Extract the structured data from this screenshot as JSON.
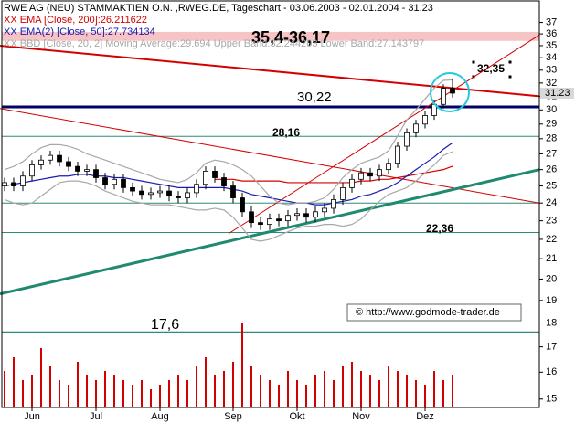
{
  "chart_data": {
    "type": "candlestick",
    "title": "RWE AG (NEU) STAMMAKTIEN O.N. ,RWEG.DE, Tageschart - 03.06.2003 - 02.01.2004 - 31.23",
    "log_scale": true,
    "ylim": [
      14.7,
      38.2
    ],
    "yticks": [
      15,
      16,
      17,
      18,
      19,
      20,
      21,
      22,
      23,
      24,
      25,
      26,
      27,
      28,
      29,
      30,
      31,
      32,
      33,
      34,
      35,
      36,
      37
    ],
    "categories": [
      null,
      null,
      null,
      "Jun",
      null,
      null,
      null,
      null,
      null,
      null,
      "Jul",
      null,
      null,
      null,
      null,
      null,
      null,
      "Aug",
      null,
      null,
      null,
      null,
      null,
      null,
      null,
      "Sep",
      null,
      null,
      null,
      null,
      null,
      null,
      "Okt",
      null,
      null,
      null,
      null,
      null,
      null,
      "Nov",
      null,
      null,
      null,
      null,
      null,
      null,
      "Dez",
      null,
      null,
      null
    ],
    "open": [
      25.0,
      25.2,
      25.0,
      25.6,
      26.3,
      26.6,
      26.9,
      26.5,
      26.2,
      25.9,
      26.0,
      25.5,
      25.1,
      25.4,
      24.9,
      24.7,
      24.5,
      24.6,
      24.7,
      24.4,
      24.3,
      24.6,
      25.1,
      25.9,
      25.5,
      25.0,
      24.3,
      23.5,
      22.9,
      22.8,
      23.1,
      23.0,
      23.3,
      23.4,
      23.2,
      23.5,
      23.7,
      24.2,
      24.9,
      25.4,
      25.8,
      25.6,
      26.0,
      26.4,
      27.5,
      28.4,
      29.0,
      29.6,
      30.4,
      31.6
    ],
    "high": [
      25.5,
      25.5,
      25.9,
      26.6,
      26.9,
      27.2,
      27.2,
      26.8,
      26.5,
      26.3,
      26.3,
      25.8,
      25.7,
      25.7,
      25.2,
      25.0,
      24.9,
      25.0,
      25.0,
      24.7,
      24.9,
      25.4,
      26.2,
      26.2,
      25.8,
      25.3,
      24.6,
      23.8,
      23.2,
      23.4,
      23.4,
      23.6,
      23.7,
      23.7,
      23.8,
      24.0,
      24.5,
      25.2,
      25.7,
      26.1,
      26.1,
      26.3,
      26.7,
      27.8,
      28.7,
      29.3,
      29.9,
      30.7,
      31.9,
      32.35
    ],
    "low": [
      24.7,
      24.7,
      24.7,
      25.3,
      26.0,
      26.3,
      26.2,
      25.9,
      25.6,
      25.6,
      25.2,
      24.8,
      24.8,
      24.6,
      24.4,
      24.2,
      24.2,
      24.3,
      24.1,
      24.0,
      24.0,
      24.3,
      24.8,
      25.2,
      24.7,
      24.0,
      23.2,
      22.6,
      22.5,
      22.5,
      22.7,
      22.7,
      23.0,
      22.9,
      22.9,
      23.2,
      23.4,
      23.9,
      24.6,
      25.1,
      25.3,
      25.3,
      25.7,
      26.1,
      27.2,
      28.1,
      28.7,
      29.3,
      30.1,
      30.9
    ],
    "close": [
      25.2,
      25.0,
      25.6,
      26.3,
      26.6,
      26.9,
      26.5,
      26.2,
      25.9,
      26.0,
      25.5,
      25.1,
      25.4,
      24.9,
      24.7,
      24.5,
      24.6,
      24.7,
      24.4,
      24.3,
      24.6,
      25.1,
      25.9,
      25.5,
      25.0,
      24.3,
      23.5,
      22.9,
      22.8,
      23.1,
      23.0,
      23.3,
      23.4,
      23.2,
      23.5,
      23.7,
      24.2,
      24.9,
      25.4,
      25.8,
      25.6,
      26.0,
      26.4,
      27.5,
      28.4,
      29.0,
      29.6,
      30.4,
      31.6,
      31.23
    ],
    "volume": [
      40,
      55,
      30,
      35,
      65,
      45,
      30,
      25,
      50,
      35,
      30,
      40,
      35,
      30,
      25,
      30,
      20,
      25,
      30,
      35,
      30,
      45,
      55,
      35,
      40,
      50,
      92,
      45,
      35,
      30,
      25,
      40,
      30,
      25,
      35,
      40,
      30,
      45,
      50,
      40,
      35,
      30,
      45,
      40,
      35,
      30,
      25,
      40,
      30,
      35
    ],
    "volume_lim": [
      0,
      100
    ],
    "volume_color": "#d40000",
    "series": [
      {
        "name": "XX EMA [Close, 200]:26.211622",
        "color": "#d40000",
        "dash": false,
        "values": [
          null,
          null,
          null,
          null,
          null,
          null,
          null,
          null,
          null,
          null,
          null,
          null,
          null,
          null,
          null,
          null,
          null,
          null,
          null,
          null,
          null,
          null,
          null,
          25.4,
          25.4,
          25.4,
          25.3,
          25.3,
          25.3,
          25.3,
          25.3,
          25.2,
          25.2,
          25.2,
          25.2,
          25.2,
          25.2,
          25.2,
          25.2,
          25.3,
          25.3,
          25.4,
          25.4,
          25.5,
          25.6,
          25.7,
          25.8,
          25.9,
          26.0,
          26.21
        ]
      },
      {
        "name": "XX EMA(2) [Close, 50]:27.734134",
        "color": "#1a1ab0",
        "dash": false,
        "values": [
          25.0,
          25.1,
          25.2,
          25.3,
          25.4,
          25.5,
          25.6,
          25.6,
          25.7,
          25.7,
          25.6,
          25.6,
          25.5,
          25.5,
          25.4,
          25.3,
          25.2,
          25.1,
          25.0,
          24.9,
          24.9,
          24.9,
          24.9,
          24.9,
          24.9,
          24.8,
          24.7,
          24.5,
          24.4,
          24.3,
          24.2,
          24.1,
          24.0,
          24.0,
          23.9,
          23.9,
          24.0,
          24.1,
          24.2,
          24.4,
          24.5,
          24.7,
          24.9,
          25.2,
          25.6,
          26.0,
          26.4,
          26.8,
          27.3,
          27.73
        ]
      },
      {
        "name": "XX BBD [Close, 20, 2] Moving Average:29.694 Upper Band:32.244203 Lower Band:27.143797",
        "color": "#a8a8a8",
        "dash": false,
        "values": [
          26.0,
          26.2,
          26.5,
          27.0,
          27.4,
          27.6,
          27.6,
          27.5,
          27.3,
          27.0,
          26.8,
          26.6,
          26.4,
          26.2,
          26.0,
          25.8,
          25.6,
          25.4,
          25.3,
          25.2,
          25.4,
          25.8,
          26.4,
          26.6,
          26.5,
          26.3,
          26.0,
          25.6,
          25.0,
          24.4,
          24.0,
          23.9,
          24.0,
          24.0,
          24.1,
          24.3,
          24.8,
          25.5,
          26.0,
          26.4,
          26.6,
          26.8,
          27.2,
          28.2,
          29.3,
          30.0,
          30.8,
          31.6,
          32.2,
          32.24
        ],
        "values2": [
          24.2,
          24.0,
          23.9,
          24.0,
          24.4,
          24.8,
          25.2,
          25.3,
          25.3,
          25.2,
          25.0,
          24.7,
          24.5,
          24.3,
          24.1,
          24.0,
          23.9,
          23.9,
          23.9,
          23.8,
          23.7,
          23.6,
          23.6,
          23.7,
          23.6,
          23.2,
          22.6,
          22.0,
          21.9,
          22.0,
          22.2,
          22.4,
          22.6,
          22.7,
          22.7,
          22.8,
          22.8,
          22.7,
          22.8,
          23.1,
          23.6,
          24.1,
          24.5,
          24.7,
          24.9,
          25.3,
          25.8,
          26.3,
          26.9,
          27.14
        ]
      }
    ],
    "levels": [
      {
        "label": "35,4-36,17",
        "from": 35.4,
        "to": 36.17,
        "color": "#f6c4c4"
      },
      {
        "label": "32,35",
        "value": 32.35
      },
      {
        "label": "30,22",
        "value": 30.22,
        "color": "#000066",
        "width": 3
      },
      {
        "label": "28,16",
        "value": 28.16,
        "color": "#2e8b7a",
        "width": 1
      },
      {
        "value": 24.0,
        "color": "#2e8b7a",
        "width": 1
      },
      {
        "label": "22,36",
        "value": 22.36,
        "color": "#2e8b7a",
        "width": 1
      },
      {
        "label": "17,6",
        "value": 17.6,
        "color": "#2e8b7a",
        "width": 2
      }
    ],
    "trendlines": [
      {
        "from": [
          -0.5,
          35.0
        ],
        "to": [
          58.5,
          31.0
        ],
        "color": "#d40000",
        "width": 2
      },
      {
        "from": [
          -0.5,
          30.1
        ],
        "to": [
          58.5,
          24.0
        ],
        "color": "#d40000",
        "width": 1
      },
      {
        "from": [
          24.5,
          22.3
        ],
        "to": [
          58.5,
          35.9
        ],
        "color": "#d40000",
        "width": 1
      },
      {
        "from": [
          -0.5,
          19.3
        ],
        "to": [
          58.5,
          26.0
        ],
        "color": "#1f8a70",
        "width": 3
      }
    ],
    "last_price": 31.23,
    "copyright": "© http://www.godmode-trader.de"
  }
}
